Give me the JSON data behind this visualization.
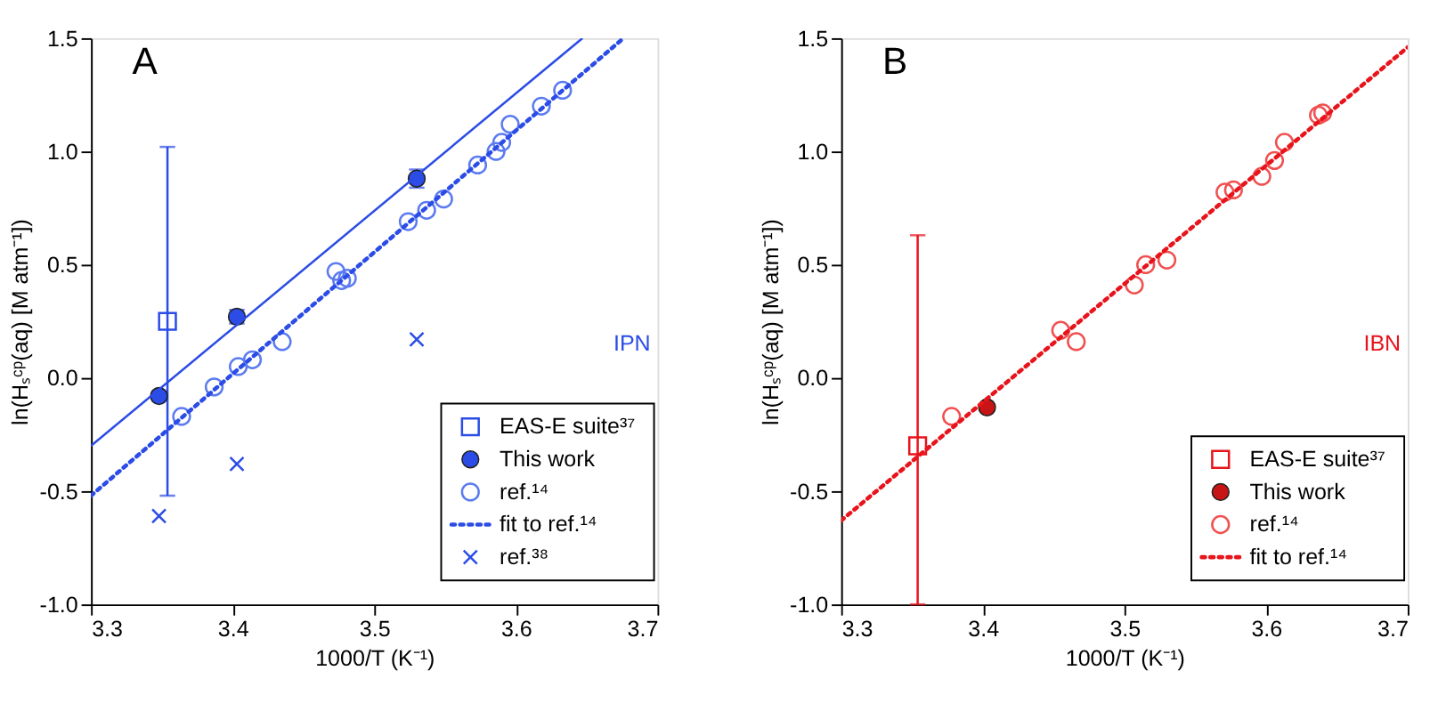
{
  "chart_data": [
    {
      "type": "scatter",
      "title": "A",
      "xlabel": "1000/T (K⁻¹)",
      "ylabel": "ln(Hₛᶜᵖ(aq) [M atm⁻¹])",
      "annotations": [
        "IPN"
      ],
      "xlim": [
        3.3,
        3.7
      ],
      "xticks": [
        3.3,
        3.4,
        3.5,
        3.6,
        3.7
      ],
      "ylim": [
        -1.0,
        1.5
      ],
      "yticks": [
        {
          "value": -1,
          "label": "-1.0"
        },
        -0.5,
        {
          "value": 0,
          "label": "0.0"
        },
        0.5,
        {
          "value": 1,
          "label": "1.0"
        },
        1.5
      ],
      "grid": false,
      "legend": "bottom right",
      "series": [
        {
          "name": "EAS-E suite³⁷",
          "type": "scatter",
          "marker": "square",
          "color": "#2b4ce6",
          "x": [
            3.354
          ],
          "values": [
            0.25
          ],
          "errors": [
            [
              -0.52,
              1.02
            ]
          ]
        },
        {
          "name": "This work",
          "type": "scatter",
          "marker": "circle",
          "color": "#2b4ce6",
          "x": [
            3.348,
            3.403,
            3.53
          ],
          "values": [
            -0.08,
            0.27,
            0.88
          ],
          "errors": [
            0.02,
            0.03,
            0.04
          ]
        },
        {
          "name": "ref.¹⁴",
          "type": "scatter",
          "marker": "circle",
          "color": "#5b7bf0",
          "x": [
            3.364,
            3.387,
            3.404,
            3.414,
            3.435,
            3.473,
            3.477,
            3.481,
            3.524,
            3.537,
            3.549,
            3.573,
            3.586,
            3.59,
            3.596,
            3.618,
            3.633
          ],
          "values": [
            -0.17,
            -0.04,
            0.05,
            0.08,
            0.16,
            0.47,
            0.43,
            0.44,
            0.69,
            0.74,
            0.79,
            0.94,
            1.0,
            1.04,
            1.12,
            1.2,
            1.27
          ]
        },
        {
          "name": "fit to ref.¹⁴",
          "type": "line",
          "line_style": "dotted",
          "color": "#2b4ce6",
          "x": [
            3.3,
            3.676
          ],
          "values": [
            -0.52,
            1.5
          ]
        },
        {
          "name": "ref.³⁸",
          "type": "scatter",
          "marker": "cross",
          "color": "#2b4ce6",
          "x": [
            3.348,
            3.403,
            3.53
          ],
          "values": [
            -0.61,
            -0.38,
            0.17
          ]
        },
        {
          "type": "line",
          "line_style": "solid",
          "color": "#2b4ce6",
          "x": [
            3.3,
            3.647
          ],
          "values": [
            -0.3,
            1.5
          ]
        }
      ]
    },
    {
      "type": "scatter",
      "title": "B",
      "xlabel": "1000/T (K⁻¹)",
      "ylabel": "ln(Hₛᶜᵖ(aq) [M atm⁻¹])",
      "annotations": [
        "IBN"
      ],
      "xlim": [
        3.3,
        3.7
      ],
      "xticks": [
        3.3,
        3.4,
        3.5,
        3.6,
        3.7
      ],
      "ylim": [
        -1.0,
        1.5
      ],
      "yticks": [
        {
          "value": -1,
          "label": "-1.0"
        },
        -0.5,
        {
          "value": 0,
          "label": "0.0"
        },
        0.5,
        {
          "value": 1,
          "label": "1.0"
        },
        1.5
      ],
      "grid": false,
      "legend": "bottom right",
      "series": [
        {
          "name": "EAS-E suite³⁷",
          "type": "scatter",
          "marker": "square",
          "color": "#e8141c",
          "x": [
            3.354
          ],
          "values": [
            -0.3
          ],
          "errors": [
            [
              -1.0,
              0.63
            ]
          ]
        },
        {
          "name": "This work",
          "type": "scatter",
          "marker": "circle",
          "color": "#c81414",
          "x": [
            3.403
          ],
          "values": [
            -0.13
          ]
        },
        {
          "name": "ref.¹⁴",
          "type": "scatter",
          "marker": "circle",
          "color": "#f05050",
          "x": [
            3.378,
            3.455,
            3.466,
            3.507,
            3.515,
            3.53,
            3.571,
            3.577,
            3.597,
            3.606,
            3.613,
            3.637,
            3.64
          ],
          "values": [
            -0.17,
            0.21,
            0.16,
            0.41,
            0.5,
            0.52,
            0.82,
            0.83,
            0.89,
            0.96,
            1.04,
            1.16,
            1.17
          ]
        },
        {
          "name": "fit to ref.¹⁴",
          "type": "line",
          "line_style": "dotted",
          "color": "#e8141c",
          "x": [
            3.3,
            3.7
          ],
          "values": [
            -0.63,
            1.46
          ]
        }
      ]
    }
  ]
}
